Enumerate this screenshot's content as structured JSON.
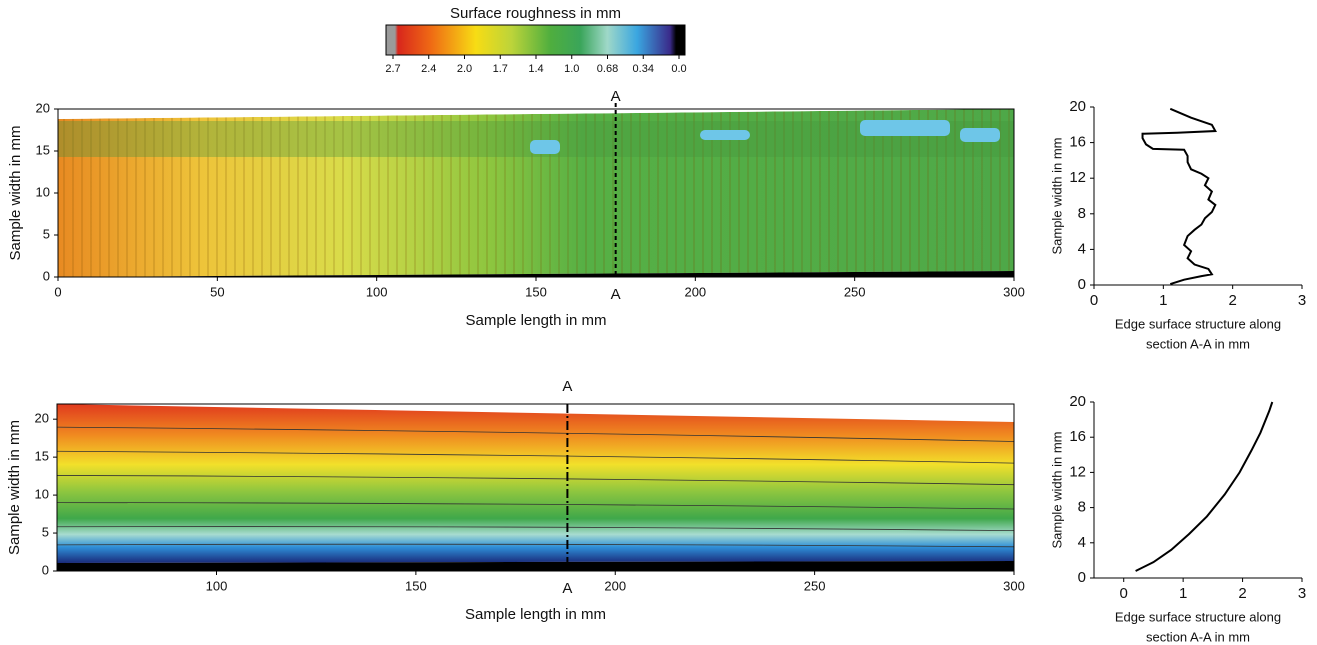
{
  "chart_data": [
    {
      "type": "heatmap",
      "colorbar": {
        "title": "Surface roughness in mm",
        "ticks": [
          2.7,
          2.4,
          {
            "value": 2,
            "label": "2.0"
          },
          1.7,
          1.4,
          {
            "value": 1,
            "label": "1.0"
          },
          0.68,
          0.34,
          {
            "value": 0,
            "label": "0.0"
          }
        ]
      },
      "xlabel": "Sample length in mm",
      "ylabel": "Sample width in mm",
      "xlim": [
        0,
        300
      ],
      "xticks": [
        0,
        50,
        100,
        150,
        200,
        250,
        300
      ],
      "ylim": [
        0,
        20
      ],
      "yticks": [
        0,
        5,
        10,
        15,
        20
      ],
      "section": {
        "label": "A",
        "x": 175
      }
    },
    {
      "type": "line",
      "xlabel": [
        "Edge surface structure along",
        "section A-A in mm"
      ],
      "ylabel": "Sample width in mm",
      "xlim": [
        0,
        3
      ],
      "xticks": [
        0,
        1,
        2,
        3
      ],
      "ylim": [
        0,
        20
      ],
      "yticks": [
        0,
        4,
        8,
        12,
        16,
        20
      ],
      "series": [
        {
          "color": "#000000",
          "x": [
            1.1,
            1.3,
            1.55,
            1.7,
            1.65,
            1.45,
            1.35,
            1.4,
            1.3,
            1.35,
            1.45,
            1.55,
            1.6,
            1.7,
            1.75,
            1.65,
            1.7,
            1.6,
            1.65,
            1.55,
            1.4,
            1.35,
            1.35,
            1.3,
            0.85,
            0.75,
            0.7,
            0.7,
            1.2,
            1.75,
            1.7,
            1.4,
            1.1
          ],
          "y": [
            0.1,
            0.6,
            1.0,
            1.2,
            1.8,
            2.3,
            3.0,
            3.8,
            4.5,
            5.5,
            6.2,
            6.8,
            7.5,
            8.2,
            9.0,
            9.6,
            10.5,
            11.2,
            12.0,
            12.5,
            13.0,
            13.8,
            14.5,
            15.2,
            15.3,
            15.8,
            16.5,
            17.0,
            17.1,
            17.3,
            18.0,
            18.8,
            19.8
          ]
        }
      ]
    },
    {
      "type": "heatmap",
      "xlabel": "Sample length in mm",
      "ylabel": "Sample width in mm",
      "xlim": [
        60,
        300
      ],
      "xticks": [
        100,
        150,
        200,
        250,
        300
      ],
      "ylim": [
        0,
        22
      ],
      "yticks": [
        0,
        5,
        10,
        15,
        20
      ],
      "section": {
        "label": "A",
        "x": 188
      }
    },
    {
      "type": "line",
      "xlabel": [
        "Edge surface structure along",
        "section A-A in mm"
      ],
      "ylabel": "Sample width in mm",
      "xlim": [
        -0.5,
        3
      ],
      "xticks": [
        0,
        1,
        2,
        3
      ],
      "ylim": [
        0,
        20
      ],
      "yticks": [
        0,
        4,
        8,
        12,
        16,
        20
      ],
      "series": [
        {
          "color": "#000000",
          "x": [
            0.2,
            0.5,
            0.8,
            1.1,
            1.4,
            1.7,
            1.95,
            2.15,
            2.3,
            2.45,
            2.5
          ],
          "y": [
            0.8,
            1.8,
            3.2,
            5,
            7,
            9.5,
            12,
            14.5,
            16.5,
            19,
            20
          ]
        }
      ]
    }
  ]
}
